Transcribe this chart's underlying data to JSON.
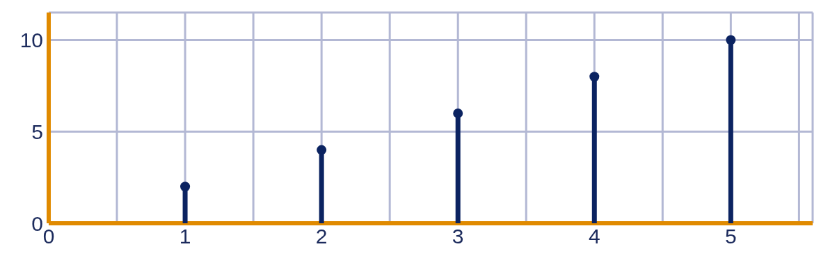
{
  "chart_data": {
    "type": "lollipop",
    "x": [
      1,
      2,
      3,
      4,
      5
    ],
    "values": [
      2,
      4,
      6,
      8,
      10
    ],
    "color": "#0b2361",
    "xlim": [
      0,
      5.6
    ],
    "xticks": [
      0,
      {
        "value": 0.5,
        "label": null
      },
      1,
      {
        "value": 1.5,
        "label": null
      },
      2,
      {
        "value": 2.5,
        "label": null
      },
      3,
      {
        "value": 3.5,
        "label": null
      },
      4,
      {
        "value": 4.5,
        "label": null
      },
      5,
      {
        "value": 5.5,
        "label": null
      }
    ],
    "ylim": [
      0,
      11.5
    ],
    "yticks": [
      0,
      5,
      10
    ],
    "grid": true,
    "marker": "circle"
  }
}
